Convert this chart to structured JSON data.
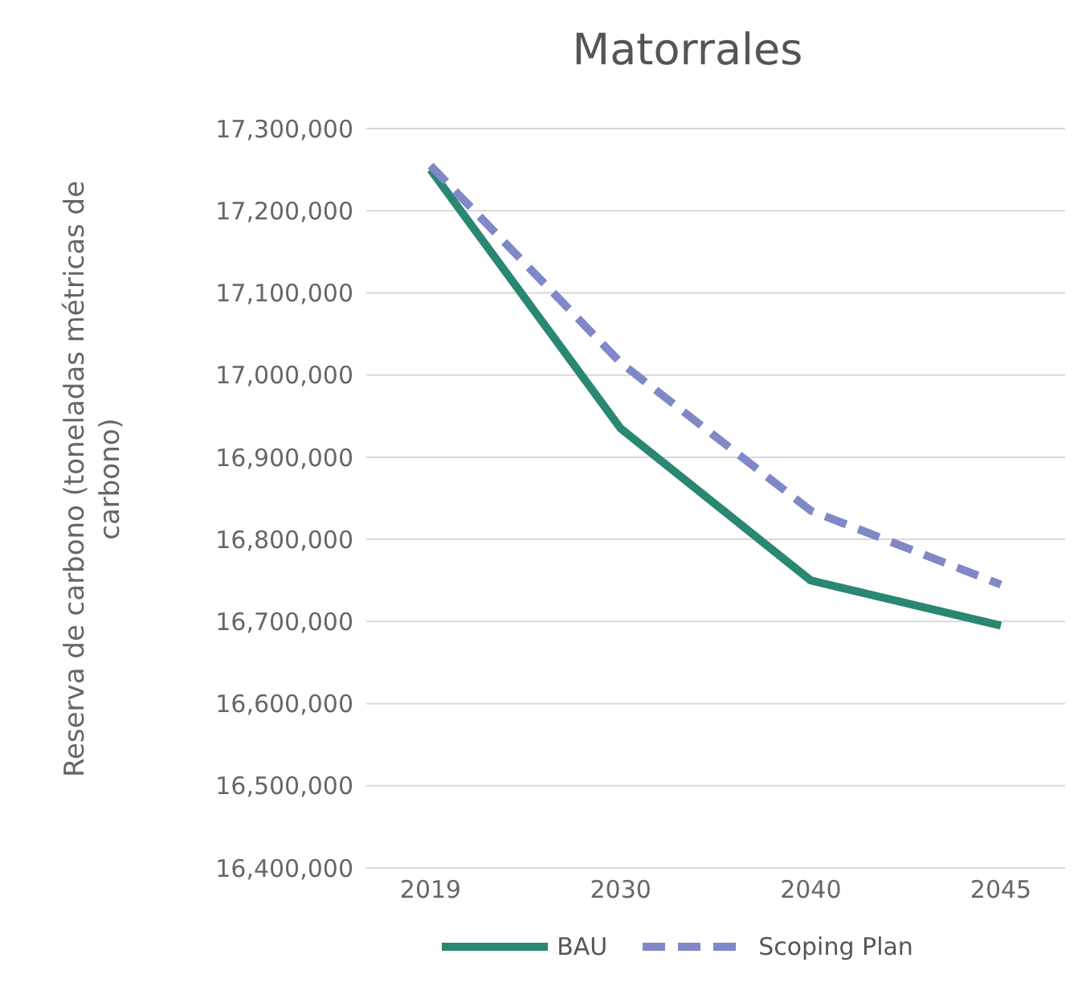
{
  "chart_data": {
    "type": "line",
    "title": "Matorrales",
    "ylabel": "Reserva de carbono (toneladas métricas de carbono)",
    "categories": [
      "2019",
      "2030",
      "2040",
      "2045"
    ],
    "series": [
      {
        "name": "BAU",
        "color": "#2a8772",
        "values": [
          17250000,
          16935000,
          16750000,
          16695000
        ],
        "line_style": "solid"
      },
      {
        "name": "Scoping Plan",
        "color": "#8088c8",
        "values": [
          17255000,
          17015000,
          16835000,
          16745000
        ],
        "line_style": "dashed"
      }
    ],
    "ylim": [
      16400000,
      17300000
    ],
    "yticks": [
      {
        "value": 16400000,
        "label": "16,400,000"
      },
      {
        "value": 16500000,
        "label": "16,500,000"
      },
      {
        "value": 16600000,
        "label": "16,600,000"
      },
      {
        "value": 16700000,
        "label": "16,700,000"
      },
      {
        "value": 16800000,
        "label": "16,800,000"
      },
      {
        "value": 16900000,
        "label": "16,900,000"
      },
      {
        "value": 17000000,
        "label": "17,000,000"
      },
      {
        "value": 17100000,
        "label": "17,100,000"
      },
      {
        "value": 17200000,
        "label": "17,200,000"
      },
      {
        "value": 17300000,
        "label": "17,300,000"
      }
    ],
    "grid": "y",
    "legend": "bottom",
    "marker": "none"
  }
}
